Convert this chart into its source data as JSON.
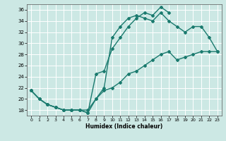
{
  "title": "",
  "xlabel": "Humidex (Indice chaleur)",
  "bg_color": "#cce8e4",
  "grid_color": "#ffffff",
  "line_color": "#1a7a6e",
  "xlim": [
    -0.5,
    23.5
  ],
  "ylim": [
    17.0,
    37.0
  ],
  "yticks": [
    18,
    20,
    22,
    24,
    26,
    28,
    30,
    32,
    34,
    36
  ],
  "xticks": [
    0,
    1,
    2,
    3,
    4,
    5,
    6,
    7,
    8,
    9,
    10,
    11,
    12,
    13,
    14,
    15,
    16,
    17,
    18,
    19,
    20,
    21,
    22,
    23
  ],
  "line1_x": [
    0,
    1,
    2,
    3,
    4,
    5,
    6,
    7,
    8,
    9,
    10,
    11,
    12,
    13,
    14,
    15,
    16,
    17,
    18,
    19,
    20,
    21,
    22,
    23
  ],
  "line1_y": [
    21.5,
    20.0,
    19.0,
    18.5,
    18.0,
    18.0,
    18.0,
    17.5,
    20.0,
    21.5,
    22.0,
    23.0,
    24.5,
    25.0,
    26.0,
    27.0,
    28.0,
    28.5,
    27.0,
    27.5,
    28.0,
    28.5,
    28.5,
    28.5
  ],
  "line2_x": [
    0,
    1,
    2,
    3,
    4,
    5,
    6,
    7,
    8,
    9,
    10,
    11,
    12,
    13,
    14,
    15,
    16,
    17,
    18,
    19,
    20,
    21,
    22,
    23
  ],
  "line2_y": [
    21.5,
    20.0,
    19.0,
    18.5,
    18.0,
    18.0,
    18.0,
    18.0,
    20.0,
    22.0,
    31.0,
    33.0,
    34.5,
    35.0,
    34.5,
    34.0,
    35.5,
    34.0,
    33.0,
    32.0,
    33.0,
    33.0,
    31.0,
    28.5
  ],
  "line3_x": [
    0,
    1,
    2,
    3,
    4,
    5,
    6,
    7,
    8,
    9,
    10,
    11,
    12,
    13,
    14,
    15,
    16,
    17
  ],
  "line3_y": [
    21.5,
    20.0,
    19.0,
    18.5,
    18.0,
    18.0,
    18.0,
    17.5,
    24.5,
    25.0,
    29.0,
    31.0,
    33.0,
    34.5,
    35.5,
    35.0,
    36.5,
    35.5
  ],
  "marker": "D",
  "markersize": 2.0,
  "linewidth": 1.0
}
